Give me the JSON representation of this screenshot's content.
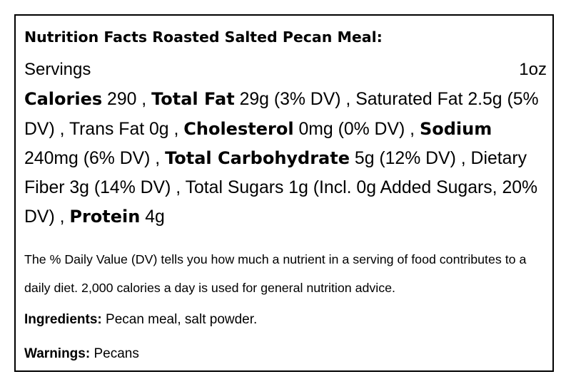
{
  "label": {
    "title": "Nutrition Facts Roasted Salted Pecan Meal:",
    "servings_label": "Servings",
    "servings_value": "1oz",
    "nutrients": {
      "calories_label": "Calories",
      "calories_value": "290 ,",
      "total_fat_label": "Total Fat",
      "total_fat_value": "29g (3% DV) ,",
      "saturated_fat": "Saturated Fat 2.5g (5% DV) ,",
      "trans_fat": "Trans Fat 0g ,",
      "cholesterol_label": "Cholesterol",
      "cholesterol_value": "0mg (0% DV) ,",
      "sodium_label": "Sodium",
      "sodium_value": "240mg (6% DV) ,",
      "total_carb_label": "Total Carbohydrate",
      "total_carb_value": "5g (12% DV) ,",
      "dietary_fiber": "Dietary Fiber 3g (14% DV) ,",
      "total_sugars": "Total Sugars 1g (Incl. 0g Added Sugars, 20% DV) ,",
      "protein_label": "Protein",
      "protein_value": "4g"
    },
    "dv_note": "The % Daily Value (DV) tells you how much a nutrient in a serving of food contributes to a daily diet. 2,000 calories a day is used for general nutrition advice.",
    "ingredients_label": "Ingredients:",
    "ingredients_value": "Pecan meal, salt powder.",
    "warnings_label": "Warnings:",
    "warnings_value": "Pecans"
  }
}
